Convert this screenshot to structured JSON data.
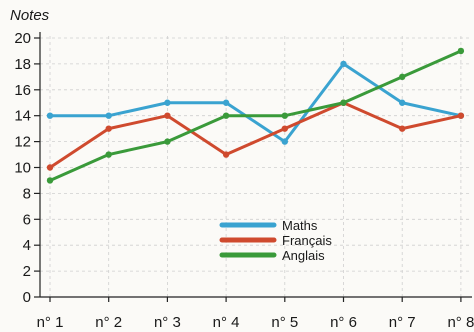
{
  "chart_data": {
    "type": "line",
    "ylabel": "Notes",
    "xlabel": "",
    "categories": [
      "n° 1",
      "n° 2",
      "n° 3",
      "n° 4",
      "n° 5",
      "n° 6",
      "n° 7",
      "n° 8"
    ],
    "y_ticks": [
      "0",
      "2",
      "4",
      "6",
      "8",
      "10",
      "12",
      "14",
      "16",
      "18",
      "20"
    ],
    "ylim": [
      0,
      20
    ],
    "grid": true,
    "legend_position": "bottom-right",
    "series": [
      {
        "name": "Maths",
        "color": "#3aa3d0",
        "values": [
          14,
          14,
          15,
          15,
          12,
          18,
          15,
          14
        ]
      },
      {
        "name": "Français",
        "color": "#cf4a2e",
        "values": [
          10,
          13,
          14,
          11,
          13,
          15,
          13,
          14
        ]
      },
      {
        "name": "Anglais",
        "color": "#3a9a3a",
        "values": [
          9,
          11,
          12,
          14,
          14,
          15,
          17,
          19
        ]
      }
    ]
  }
}
